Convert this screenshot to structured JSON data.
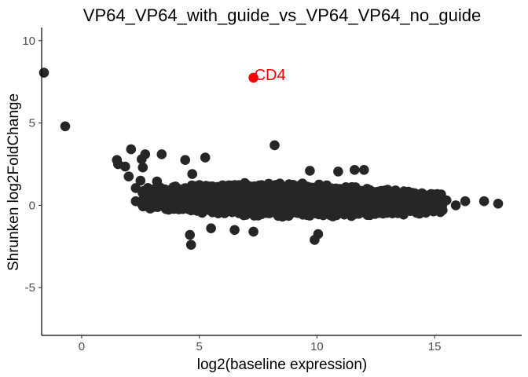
{
  "chart_data": {
    "type": "scatter",
    "title": "VP64_VP64_with_guide_vs_VP64_VP64_no_guide",
    "xlabel": "log2(baseline expression)",
    "ylabel": "Shrunken log2FoldChange",
    "xlim": [
      -1.7,
      18.7
    ],
    "ylim": [
      -7.9,
      10.8
    ],
    "xticks": [
      0,
      5,
      10,
      15
    ],
    "yticks": [
      -5,
      0,
      5,
      10
    ],
    "xtick_labels": [
      "0",
      "5",
      "10",
      "15"
    ],
    "ytick_labels": [
      "-5",
      "0",
      "5",
      "10"
    ],
    "grid": false,
    "point_color": "#262626",
    "highlight_color": "#ff0000",
    "highlight": {
      "label": "CD4",
      "x": 7.3,
      "y": 7.75
    },
    "outliers": [
      {
        "x": -1.6,
        "y": 8.05
      },
      {
        "x": -0.7,
        "y": 4.8
      },
      {
        "x": 8.2,
        "y": 3.65
      },
      {
        "x": 2.1,
        "y": 3.4
      },
      {
        "x": 3.4,
        "y": 3.1
      },
      {
        "x": 2.7,
        "y": 3.1
      },
      {
        "x": 5.25,
        "y": 2.9
      },
      {
        "x": 4.4,
        "y": 2.75
      },
      {
        "x": 2.55,
        "y": 2.8
      },
      {
        "x": 1.5,
        "y": 2.75
      },
      {
        "x": 1.55,
        "y": 2.5
      },
      {
        "x": 1.85,
        "y": 2.35
      },
      {
        "x": 2.6,
        "y": 2.3
      },
      {
        "x": 2.0,
        "y": 1.75
      },
      {
        "x": 11.6,
        "y": 2.15
      },
      {
        "x": 12.0,
        "y": 2.15
      },
      {
        "x": 10.9,
        "y": 2.05
      },
      {
        "x": 9.7,
        "y": 2.1
      },
      {
        "x": 4.6,
        "y": -1.8
      },
      {
        "x": 4.65,
        "y": -2.4
      },
      {
        "x": 5.5,
        "y": -1.4
      },
      {
        "x": 6.5,
        "y": -1.5
      },
      {
        "x": 7.3,
        "y": -1.6
      },
      {
        "x": 9.9,
        "y": -2.1
      },
      {
        "x": 10.05,
        "y": -1.75
      },
      {
        "x": 17.7,
        "y": 0.1
      },
      {
        "x": 17.1,
        "y": 0.25
      },
      {
        "x": 16.3,
        "y": 0.25
      },
      {
        "x": 15.9,
        "y": 0.0
      },
      {
        "x": 15.5,
        "y": 0.3
      },
      {
        "x": 14.8,
        "y": 0.5
      },
      {
        "x": 15.3,
        "y": -0.2
      },
      {
        "x": 14.5,
        "y": -0.4
      },
      {
        "x": 13.7,
        "y": 0.85
      },
      {
        "x": 2.5,
        "y": 1.5
      },
      {
        "x": 2.3,
        "y": 1.05
      },
      {
        "x": 2.3,
        "y": 0.25
      },
      {
        "x": 2.7,
        "y": 0.2
      },
      {
        "x": 13.0,
        "y": 0.95
      },
      {
        "x": 12.4,
        "y": 0.8
      },
      {
        "x": 3.2,
        "y": 1.45
      },
      {
        "x": 4.7,
        "y": 1.9
      }
    ],
    "main_cloud": {
      "x_start": 2.6,
      "x_end": 15.3,
      "steps": 80,
      "center_start": 0.35,
      "center_end": 0.0,
      "upper_half_width": 1.05,
      "lower_half_width": 0.75
    }
  }
}
